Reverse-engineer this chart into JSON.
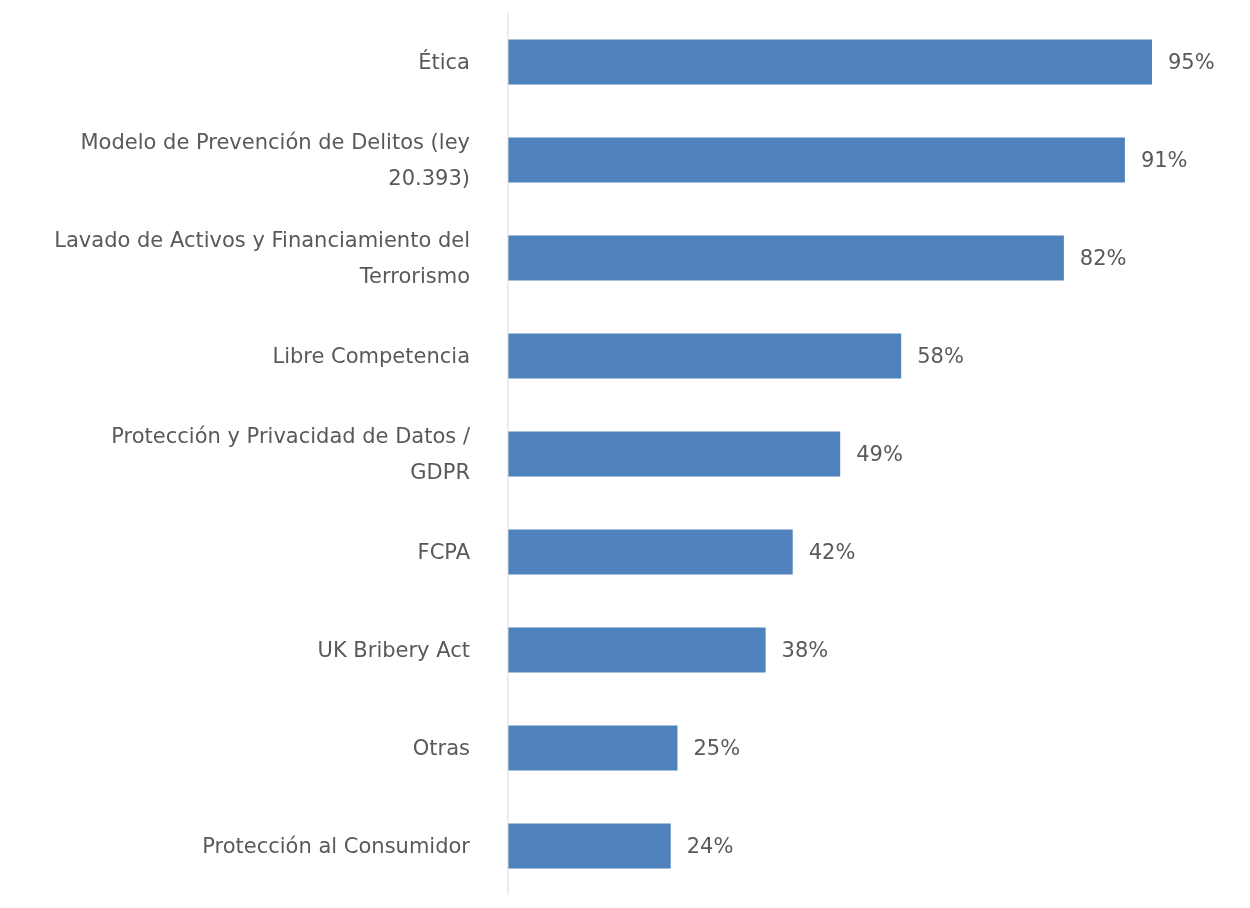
{
  "chart_data": {
    "type": "bar",
    "orientation": "horizontal",
    "categories": [
      "Ética",
      "Modelo de Prevención de Delitos (ley 20.393)",
      "Lavado de Activos y Financiamiento del Terrorismo",
      "Libre Competencia",
      "Protección y Privacidad de Datos / GDPR",
      "FCPA",
      "UK Bribery Act",
      "Otras",
      "Protección al Consumidor"
    ],
    "values": [
      95,
      91,
      82,
      58,
      49,
      42,
      38,
      25,
      24
    ],
    "value_labels": [
      "95%",
      "91%",
      "82%",
      "58%",
      "49%",
      "42%",
      "38%",
      "25%",
      "24%"
    ],
    "color": "#4f81bd"
  }
}
